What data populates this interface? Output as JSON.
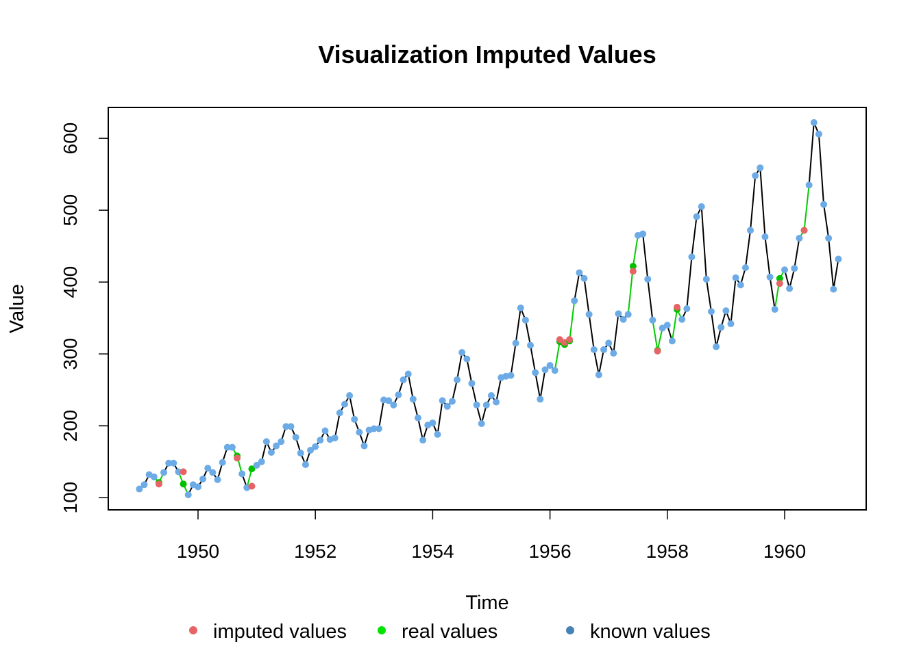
{
  "chart_data": {
    "type": "line",
    "title": "Visualization Imputed Values",
    "xlabel": "Time",
    "ylabel": "Value",
    "xlim": [
      1948.47,
      1961.39
    ],
    "ylim": [
      83,
      643
    ],
    "x_ticks": [
      1950,
      1952,
      1954,
      1956,
      1958,
      1960
    ],
    "y_ticks": [
      100,
      200,
      300,
      400,
      500,
      600
    ],
    "x_start": 1949,
    "x_step": 0.08333,
    "values": [
      112,
      118,
      132,
      129,
      121,
      135,
      148,
      148,
      136,
      119,
      104,
      118,
      115,
      126,
      141,
      135,
      125,
      149,
      170,
      170,
      158,
      133,
      114,
      140,
      145,
      150,
      178,
      163,
      172,
      178,
      199,
      199,
      184,
      162,
      146,
      166,
      171,
      180,
      193,
      181,
      183,
      218,
      230,
      242,
      209,
      191,
      172,
      194,
      196,
      196,
      236,
      235,
      229,
      243,
      264,
      272,
      237,
      211,
      180,
      201,
      204,
      188,
      235,
      227,
      234,
      264,
      302,
      293,
      259,
      229,
      203,
      229,
      242,
      233,
      267,
      269,
      270,
      315,
      364,
      347,
      312,
      274,
      237,
      278,
      284,
      277,
      317,
      313,
      318,
      374,
      413,
      405,
      355,
      306,
      271,
      306,
      315,
      301,
      356,
      348,
      355,
      422,
      465,
      467,
      404,
      347,
      305,
      336,
      340,
      318,
      362,
      348,
      363,
      435,
      491,
      505,
      404,
      359,
      310,
      337,
      360,
      342,
      406,
      396,
      420,
      472,
      548,
      559,
      463,
      407,
      362,
      405,
      417,
      391,
      419,
      461,
      472,
      535,
      622,
      606,
      508,
      461,
      390,
      432
    ],
    "imputed_indices": [
      4,
      9,
      20,
      23,
      86,
      87,
      88,
      101,
      106,
      110,
      131,
      136
    ],
    "imputed_values": [
      119,
      136,
      155,
      116,
      320,
      316,
      320,
      415,
      304,
      365,
      398,
      472
    ],
    "series": [
      {
        "name": "imputed values",
        "color": "#E66466",
        "marker": "dot"
      },
      {
        "name": "real values",
        "color": "#00E500",
        "marker": "dot"
      },
      {
        "name": "known values",
        "color": "#4682B4",
        "marker": "dot"
      }
    ],
    "line_color": "#000000",
    "real_line_color": "#00CD00",
    "known_point_color": "#6CABE6",
    "real_point_color": "#00C000",
    "grid": false,
    "legend_position": "bottom"
  }
}
